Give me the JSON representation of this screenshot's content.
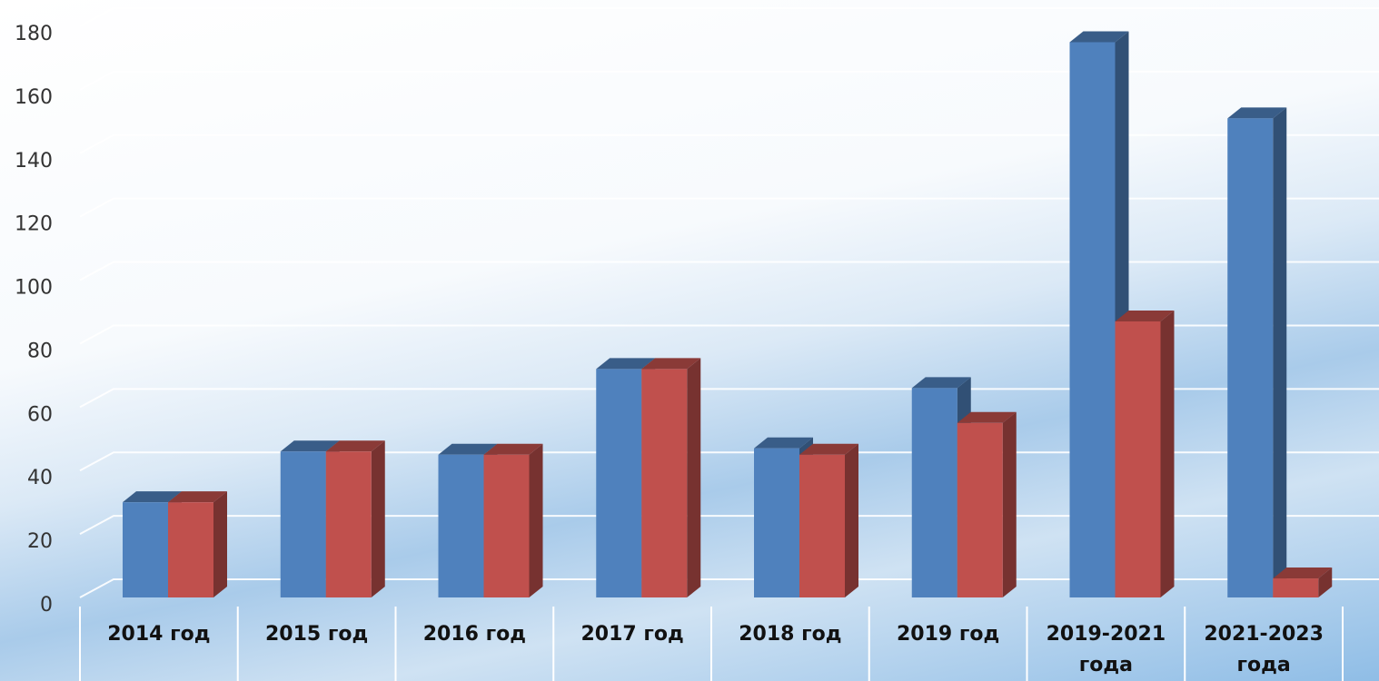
{
  "chart_data": {
    "type": "bar3d",
    "categories": [
      "2014 год",
      "2015 год",
      "2016 год",
      "2017 год",
      "2018 год",
      "2019 год",
      "2019-2021 года",
      "2021-2023 года"
    ],
    "series": [
      {
        "color": "#4f81bd",
        "values": [
          30,
          46,
          45,
          72,
          47,
          66,
          175,
          151
        ]
      },
      {
        "color": "#c0504d",
        "values": [
          30,
          46,
          45,
          72,
          45,
          55,
          87,
          6
        ]
      }
    ],
    "ylim": [
      0,
      180
    ],
    "yticks": [
      0,
      20,
      40,
      60,
      80,
      100,
      120,
      140,
      160,
      180
    ],
    "grid": true
  }
}
